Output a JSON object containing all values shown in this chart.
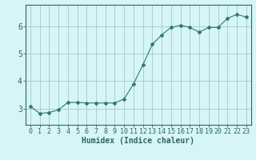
{
  "x": [
    0,
    1,
    2,
    3,
    4,
    5,
    6,
    7,
    8,
    9,
    10,
    11,
    12,
    13,
    14,
    15,
    16,
    17,
    18,
    19,
    20,
    21,
    22,
    23
  ],
  "y": [
    3.08,
    2.82,
    2.85,
    2.95,
    3.22,
    3.22,
    3.2,
    3.2,
    3.2,
    3.2,
    3.35,
    3.9,
    4.6,
    5.35,
    5.7,
    5.97,
    6.05,
    5.97,
    5.8,
    5.97,
    5.97,
    6.3,
    6.45,
    6.35
  ],
  "line_color": "#2e7b6e",
  "marker": "D",
  "marker_size": 2,
  "bg_color": "#d6f5f5",
  "grid_color": "#a8c8c8",
  "xlabel": "Humidex (Indice chaleur)",
  "xlabel_fontsize": 7,
  "tick_fontsize": 6,
  "ylabel_ticks": [
    3,
    4,
    5,
    6
  ],
  "xlim": [
    -0.5,
    23.5
  ],
  "ylim": [
    2.4,
    6.8
  ],
  "tick_color": "#2e6666"
}
